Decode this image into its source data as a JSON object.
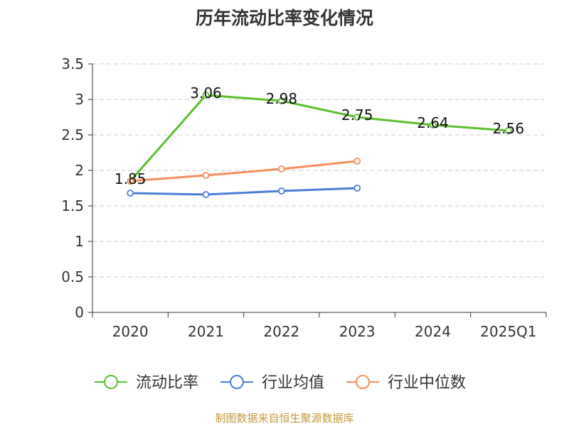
{
  "chart_data": {
    "type": "line",
    "title": "历年流动比率变化情况",
    "categories": [
      "2020",
      "2021",
      "2022",
      "2023",
      "2024",
      "2025Q1"
    ],
    "ylim": [
      0,
      3.5
    ],
    "yticks": [
      "0",
      "0.5",
      "1",
      "1.5",
      "2",
      "2.5",
      "3",
      "3.5"
    ],
    "grid": true,
    "legend_position": "bottom",
    "series": [
      {
        "name": "流动比率",
        "color": "#5cc02d",
        "values": [
          1.85,
          3.06,
          2.98,
          2.75,
          2.64,
          2.56
        ],
        "labels": [
          "1.85",
          "3.06",
          "2.98",
          "2.75",
          "2.64",
          "2.56"
        ]
      },
      {
        "name": "行业均值",
        "color": "#4a7fd6",
        "values": [
          1.68,
          1.66,
          1.71,
          1.75,
          null,
          null
        ]
      },
      {
        "name": "行业中位数",
        "color": "#f48e5a",
        "values": [
          1.85,
          1.93,
          2.02,
          2.13,
          null,
          null
        ]
      }
    ]
  },
  "source": "制图数据来自恒生聚源数据库"
}
